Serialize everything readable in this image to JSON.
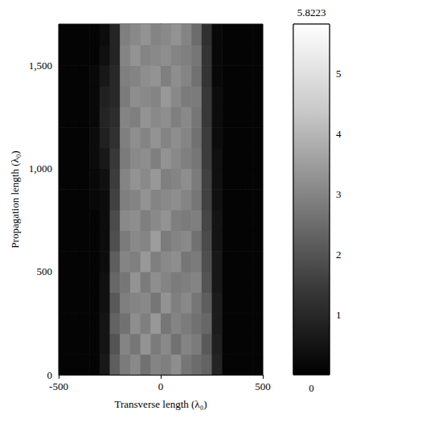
{
  "chart_data": {
    "type": "heatmap",
    "xlabel": "Transverse length (λ₀)",
    "ylabel": "Propagation length (λ₀)",
    "xlim": [
      -500,
      500
    ],
    "ylim": [
      0,
      1700
    ],
    "xticks": [
      -500,
      0,
      500
    ],
    "yticks": [
      0,
      500,
      1000,
      1500
    ],
    "grid": false,
    "x_edges": [
      -500,
      -450,
      -400,
      -350,
      -300,
      -250,
      -200,
      -150,
      -100,
      -50,
      0,
      50,
      100,
      150,
      200,
      250,
      300,
      350,
      400,
      450,
      500
    ],
    "y_edges": [
      0,
      100,
      200,
      300,
      400,
      500,
      600,
      700,
      800,
      900,
      1000,
      1100,
      1200,
      1300,
      1400,
      1500,
      1600,
      1700
    ],
    "values": [
      [
        0.1,
        0.1,
        0.1,
        0.1,
        0.6,
        2.2,
        2.8,
        3.1,
        2.6,
        3.0,
        2.9,
        3.2,
        2.7,
        2.5,
        2.3,
        0.9,
        0.1,
        0.1,
        0.1,
        0.1
      ],
      [
        0.1,
        0.1,
        0.1,
        0.1,
        0.5,
        2.0,
        3.0,
        2.7,
        3.3,
        2.8,
        3.1,
        2.6,
        3.0,
        2.8,
        2.1,
        0.8,
        0.1,
        0.1,
        0.1,
        0.1
      ],
      [
        0.1,
        0.1,
        0.1,
        0.1,
        0.5,
        2.3,
        2.6,
        3.2,
        2.9,
        3.4,
        2.7,
        3.0,
        2.8,
        2.6,
        2.4,
        0.7,
        0.1,
        0.1,
        0.1,
        0.1
      ],
      [
        0.1,
        0.1,
        0.1,
        0.1,
        0.4,
        2.1,
        2.9,
        3.0,
        3.1,
        2.7,
        3.3,
        2.9,
        3.1,
        2.7,
        2.2,
        0.7,
        0.1,
        0.1,
        0.1,
        0.1
      ],
      [
        0.1,
        0.1,
        0.1,
        0.1,
        0.4,
        2.4,
        2.7,
        3.3,
        2.8,
        3.2,
        3.0,
        2.8,
        2.9,
        3.0,
        2.0,
        0.6,
        0.1,
        0.1,
        0.1,
        0.1
      ],
      [
        0.1,
        0.1,
        0.1,
        0.1,
        0.3,
        2.2,
        3.0,
        2.9,
        3.4,
        2.9,
        3.1,
        3.2,
        2.7,
        2.8,
        1.9,
        0.6,
        0.1,
        0.1,
        0.1,
        0.1
      ],
      [
        0.1,
        0.1,
        0.1,
        0.1,
        0.3,
        1.9,
        2.8,
        3.1,
        3.0,
        3.5,
        2.8,
        3.0,
        3.1,
        2.6,
        1.8,
        0.5,
        0.1,
        0.1,
        0.1,
        0.1
      ],
      [
        0.1,
        0.1,
        0.1,
        0.1,
        0.3,
        1.8,
        3.1,
        3.2,
        2.9,
        3.1,
        3.3,
        2.9,
        2.8,
        2.9,
        1.7,
        0.5,
        0.1,
        0.1,
        0.1,
        0.1
      ],
      [
        0.1,
        0.1,
        0.1,
        0.2,
        0.3,
        1.6,
        2.9,
        3.0,
        3.3,
        3.0,
        3.1,
        3.2,
        3.0,
        2.7,
        1.6,
        0.4,
        0.1,
        0.1,
        0.1,
        0.1
      ],
      [
        0.1,
        0.1,
        0.1,
        0.2,
        0.4,
        1.5,
        3.0,
        3.3,
        3.1,
        3.4,
        2.9,
        3.0,
        3.2,
        2.8,
        1.6,
        0.4,
        0.1,
        0.1,
        0.1,
        0.1
      ],
      [
        0.1,
        0.1,
        0.1,
        0.3,
        0.6,
        1.4,
        2.8,
        3.1,
        3.2,
        2.9,
        3.3,
        3.1,
        2.9,
        2.7,
        1.5,
        0.4,
        0.1,
        0.1,
        0.1,
        0.1
      ],
      [
        0.1,
        0.1,
        0.1,
        0.3,
        0.8,
        1.2,
        2.9,
        3.2,
        3.0,
        3.3,
        3.0,
        3.2,
        3.0,
        2.6,
        1.5,
        0.3,
        0.1,
        0.1,
        0.1,
        0.1
      ],
      [
        0.1,
        0.1,
        0.1,
        0.2,
        0.9,
        1.1,
        3.0,
        2.9,
        3.3,
        3.1,
        3.2,
        2.9,
        3.1,
        2.7,
        1.4,
        0.3,
        0.1,
        0.1,
        0.1,
        0.1
      ],
      [
        0.1,
        0.1,
        0.1,
        0.2,
        0.8,
        1.0,
        2.8,
        3.2,
        3.1,
        3.0,
        3.4,
        3.1,
        2.8,
        2.8,
        1.4,
        0.3,
        0.1,
        0.1,
        0.1,
        0.1
      ],
      [
        0.1,
        0.1,
        0.1,
        0.2,
        0.6,
        1.0,
        2.9,
        3.0,
        3.2,
        3.3,
        2.9,
        3.2,
        3.0,
        2.6,
        1.3,
        0.2,
        0.1,
        0.1,
        0.1,
        0.1
      ],
      [
        0.1,
        0.1,
        0.1,
        0.1,
        0.4,
        0.9,
        3.0,
        3.3,
        3.0,
        3.1,
        3.2,
        3.0,
        2.9,
        2.7,
        1.3,
        0.2,
        0.1,
        0.1,
        0.1,
        0.1
      ],
      [
        0.1,
        0.1,
        0.1,
        0.1,
        0.3,
        0.9,
        2.9,
        3.1,
        3.3,
        3.0,
        3.1,
        3.3,
        3.0,
        2.5,
        1.2,
        0.2,
        0.1,
        0.1,
        0.1,
        0.1
      ]
    ],
    "colorbar": {
      "range": [
        0,
        5.8223
      ],
      "ticks": [
        1,
        2,
        3,
        4,
        5
      ]
    }
  }
}
